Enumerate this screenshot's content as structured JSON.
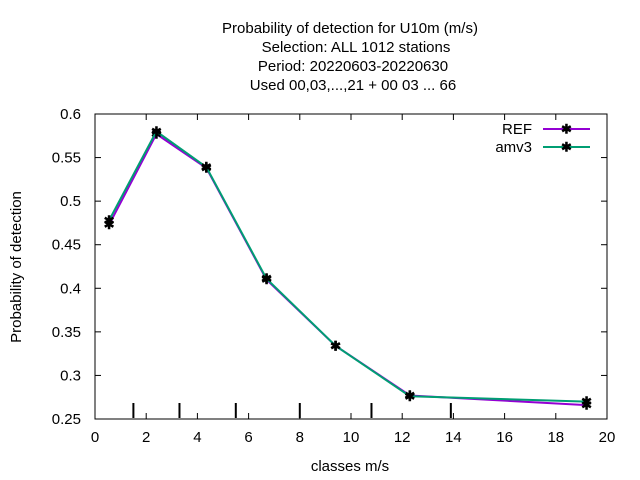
{
  "chart_data": {
    "type": "line",
    "title_lines": [
      "Probability of detection  for U10m (m/s)",
      "Selection: ALL   1012 stations",
      "Period: 20220603-20220630",
      "Used  00,03,...,21  + 00 03 ... 66"
    ],
    "xlabel": "classes m/s",
    "ylabel": "Probability of detection",
    "xlim": [
      0,
      20
    ],
    "ylim": [
      0.25,
      0.6
    ],
    "x_ticks": [
      0,
      2,
      4,
      6,
      8,
      10,
      12,
      14,
      16,
      18,
      20
    ],
    "y_ticks": [
      0.25,
      0.3,
      0.35,
      0.4,
      0.45,
      0.5,
      0.55,
      0.6
    ],
    "y_tick_labels": [
      "0.25",
      "0.3",
      "0.35",
      "0.4",
      "0.45",
      "0.5",
      "0.55",
      "0.6"
    ],
    "class_boundary_marks": [
      1.5,
      3.3,
      5.5,
      8.0,
      10.8,
      13.9
    ],
    "grid": false,
    "legend_position": "top-right",
    "series": [
      {
        "name": "REF",
        "color": "#9400d3",
        "x": [
          0.55,
          2.4,
          4.35,
          6.7,
          9.4,
          12.3,
          19.2
        ],
        "y": [
          0.473,
          0.577,
          0.538,
          0.41,
          0.334,
          0.277,
          0.266
        ]
      },
      {
        "name": "amv3",
        "color": "#009e73",
        "x": [
          0.55,
          2.4,
          4.35,
          6.7,
          9.4,
          12.3,
          19.2
        ],
        "y": [
          0.478,
          0.58,
          0.539,
          0.411,
          0.334,
          0.276,
          0.27
        ]
      }
    ]
  }
}
